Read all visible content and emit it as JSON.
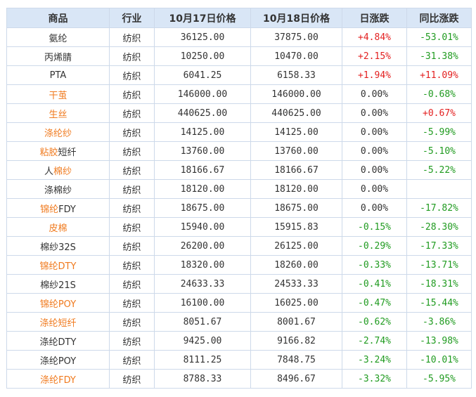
{
  "table": {
    "headers": [
      "商品",
      "行业",
      "10月17日价格",
      "10月18日价格",
      "日涨跌",
      "同比涨跌"
    ],
    "rows": [
      {
        "name": [
          {
            "t": "氨纶",
            "c": "black"
          }
        ],
        "industry": "纺织",
        "p1": "36125.00",
        "p2": "37875.00",
        "day": "+4.84%",
        "day_dir": "up",
        "yoy": "-53.01%",
        "yoy_dir": "down"
      },
      {
        "name": [
          {
            "t": "丙烯腈",
            "c": "black"
          }
        ],
        "industry": "纺织",
        "p1": "10250.00",
        "p2": "10470.00",
        "day": "+2.15%",
        "day_dir": "up",
        "yoy": "-31.38%",
        "yoy_dir": "down"
      },
      {
        "name": [
          {
            "t": "PTA",
            "c": "black"
          }
        ],
        "industry": "纺织",
        "p1": "6041.25",
        "p2": "6158.33",
        "day": "+1.94%",
        "day_dir": "up",
        "yoy": "+11.09%",
        "yoy_dir": "up"
      },
      {
        "name": [
          {
            "t": "干茧",
            "c": "orange"
          }
        ],
        "industry": "纺织",
        "p1": "146000.00",
        "p2": "146000.00",
        "day": "0.00%",
        "day_dir": "flat",
        "yoy": "-0.68%",
        "yoy_dir": "down"
      },
      {
        "name": [
          {
            "t": "生丝",
            "c": "orange"
          }
        ],
        "industry": "纺织",
        "p1": "440625.00",
        "p2": "440625.00",
        "day": "0.00%",
        "day_dir": "flat",
        "yoy": "+0.67%",
        "yoy_dir": "up"
      },
      {
        "name": [
          {
            "t": "涤纶纱",
            "c": "orange"
          }
        ],
        "industry": "纺织",
        "p1": "14125.00",
        "p2": "14125.00",
        "day": "0.00%",
        "day_dir": "flat",
        "yoy": "-5.99%",
        "yoy_dir": "down"
      },
      {
        "name": [
          {
            "t": "粘胶",
            "c": "orange"
          },
          {
            "t": "短纤",
            "c": "black"
          }
        ],
        "industry": "纺织",
        "p1": "13760.00",
        "p2": "13760.00",
        "day": "0.00%",
        "day_dir": "flat",
        "yoy": "-5.10%",
        "yoy_dir": "down"
      },
      {
        "name": [
          {
            "t": "人",
            "c": "black"
          },
          {
            "t": "棉纱",
            "c": "orange"
          }
        ],
        "industry": "纺织",
        "p1": "18166.67",
        "p2": "18166.67",
        "day": "0.00%",
        "day_dir": "flat",
        "yoy": "-5.22%",
        "yoy_dir": "down"
      },
      {
        "name": [
          {
            "t": "涤棉纱",
            "c": "black"
          }
        ],
        "industry": "纺织",
        "p1": "18120.00",
        "p2": "18120.00",
        "day": "0.00%",
        "day_dir": "flat",
        "yoy": "",
        "yoy_dir": "flat"
      },
      {
        "name": [
          {
            "t": "锦纶",
            "c": "orange"
          },
          {
            "t": "FDY",
            "c": "black"
          }
        ],
        "industry": "纺织",
        "p1": "18675.00",
        "p2": "18675.00",
        "day": "0.00%",
        "day_dir": "flat",
        "yoy": "-17.82%",
        "yoy_dir": "down"
      },
      {
        "name": [
          {
            "t": "皮棉",
            "c": "orange"
          }
        ],
        "industry": "纺织",
        "p1": "15940.00",
        "p2": "15915.83",
        "day": "-0.15%",
        "day_dir": "down",
        "yoy": "-28.30%",
        "yoy_dir": "down"
      },
      {
        "name": [
          {
            "t": "棉纱32S",
            "c": "black"
          }
        ],
        "industry": "纺织",
        "p1": "26200.00",
        "p2": "26125.00",
        "day": "-0.29%",
        "day_dir": "down",
        "yoy": "-17.33%",
        "yoy_dir": "down"
      },
      {
        "name": [
          {
            "t": "锦纶DTY",
            "c": "orange"
          }
        ],
        "industry": "纺织",
        "p1": "18320.00",
        "p2": "18260.00",
        "day": "-0.33%",
        "day_dir": "down",
        "yoy": "-13.71%",
        "yoy_dir": "down"
      },
      {
        "name": [
          {
            "t": "棉纱21S",
            "c": "black"
          }
        ],
        "industry": "纺织",
        "p1": "24633.33",
        "p2": "24533.33",
        "day": "-0.41%",
        "day_dir": "down",
        "yoy": "-18.31%",
        "yoy_dir": "down"
      },
      {
        "name": [
          {
            "t": "锦纶POY",
            "c": "orange"
          }
        ],
        "industry": "纺织",
        "p1": "16100.00",
        "p2": "16025.00",
        "day": "-0.47%",
        "day_dir": "down",
        "yoy": "-15.44%",
        "yoy_dir": "down"
      },
      {
        "name": [
          {
            "t": "涤纶短纤",
            "c": "orange"
          }
        ],
        "industry": "纺织",
        "p1": "8051.67",
        "p2": "8001.67",
        "day": "-0.62%",
        "day_dir": "down",
        "yoy": "-3.86%",
        "yoy_dir": "down"
      },
      {
        "name": [
          {
            "t": "涤纶DTY",
            "c": "black"
          }
        ],
        "industry": "纺织",
        "p1": "9425.00",
        "p2": "9166.82",
        "day": "-2.74%",
        "day_dir": "down",
        "yoy": "-13.98%",
        "yoy_dir": "down"
      },
      {
        "name": [
          {
            "t": "涤纶POY",
            "c": "black"
          }
        ],
        "industry": "纺织",
        "p1": "8111.25",
        "p2": "7848.75",
        "day": "-3.24%",
        "day_dir": "down",
        "yoy": "-10.01%",
        "yoy_dir": "down"
      },
      {
        "name": [
          {
            "t": "涤纶FDY",
            "c": "orange"
          }
        ],
        "industry": "纺织",
        "p1": "8788.33",
        "p2": "8496.67",
        "day": "-3.32%",
        "day_dir": "down",
        "yoy": "-5.95%",
        "yoy_dir": "down"
      }
    ]
  },
  "colors": {
    "header_bg": "#d9e6f6",
    "border": "#cdd9ea",
    "link_orange": "#f07a1e",
    "up_red": "#e32020",
    "down_green": "#209b20",
    "text": "#333333"
  }
}
